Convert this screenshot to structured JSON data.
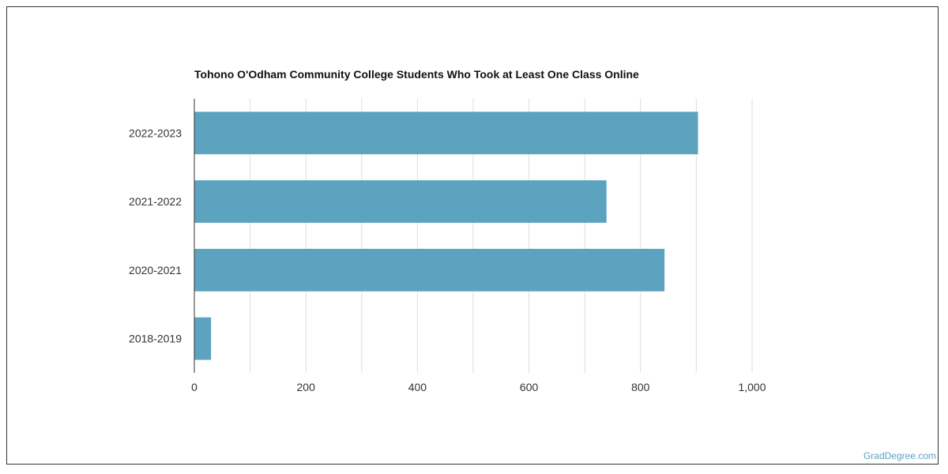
{
  "chart_data": {
    "type": "bar",
    "orientation": "horizontal",
    "title": "Tohono O'Odham Community College Students Who Took at Least One Class Online",
    "categories": [
      "2022-2023",
      "2021-2022",
      "2020-2021",
      "2018-2019"
    ],
    "values": [
      903,
      739,
      843,
      30
    ],
    "xlim": [
      0,
      1000
    ],
    "xticks": [
      0,
      200,
      400,
      600,
      800,
      1000
    ],
    "xtick_labels": [
      "0",
      "200",
      "400",
      "600",
      "800",
      "1,000"
    ],
    "grid": true,
    "bar_color": "#5ba3bf"
  },
  "watermark": {
    "text": "GradDegree.com",
    "color": "#5ba3bf"
  }
}
